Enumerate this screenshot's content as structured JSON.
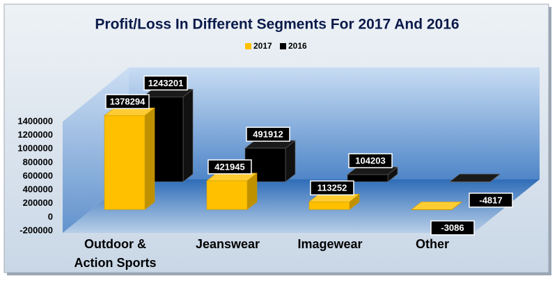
{
  "chart_data": {
    "type": "bar3d",
    "title": "Profit/Loss  In Different Segments For 2017 And 2016",
    "categories": [
      "Outdoor & Action Sports",
      "Jeanswear",
      "Imagewear",
      "Other"
    ],
    "series": [
      {
        "name": "2017",
        "color": "#ffc000",
        "values": [
          1378294,
          421945,
          113252,
          -3086
        ]
      },
      {
        "name": "2016",
        "color": "#000000",
        "values": [
          1243201,
          491912,
          104203,
          -4817
        ]
      }
    ],
    "ylim": [
      -200000,
      1400000
    ],
    "yticks": [
      -200000,
      0,
      200000,
      400000,
      600000,
      800000,
      1000000,
      1200000,
      1400000
    ],
    "legend": "top"
  }
}
